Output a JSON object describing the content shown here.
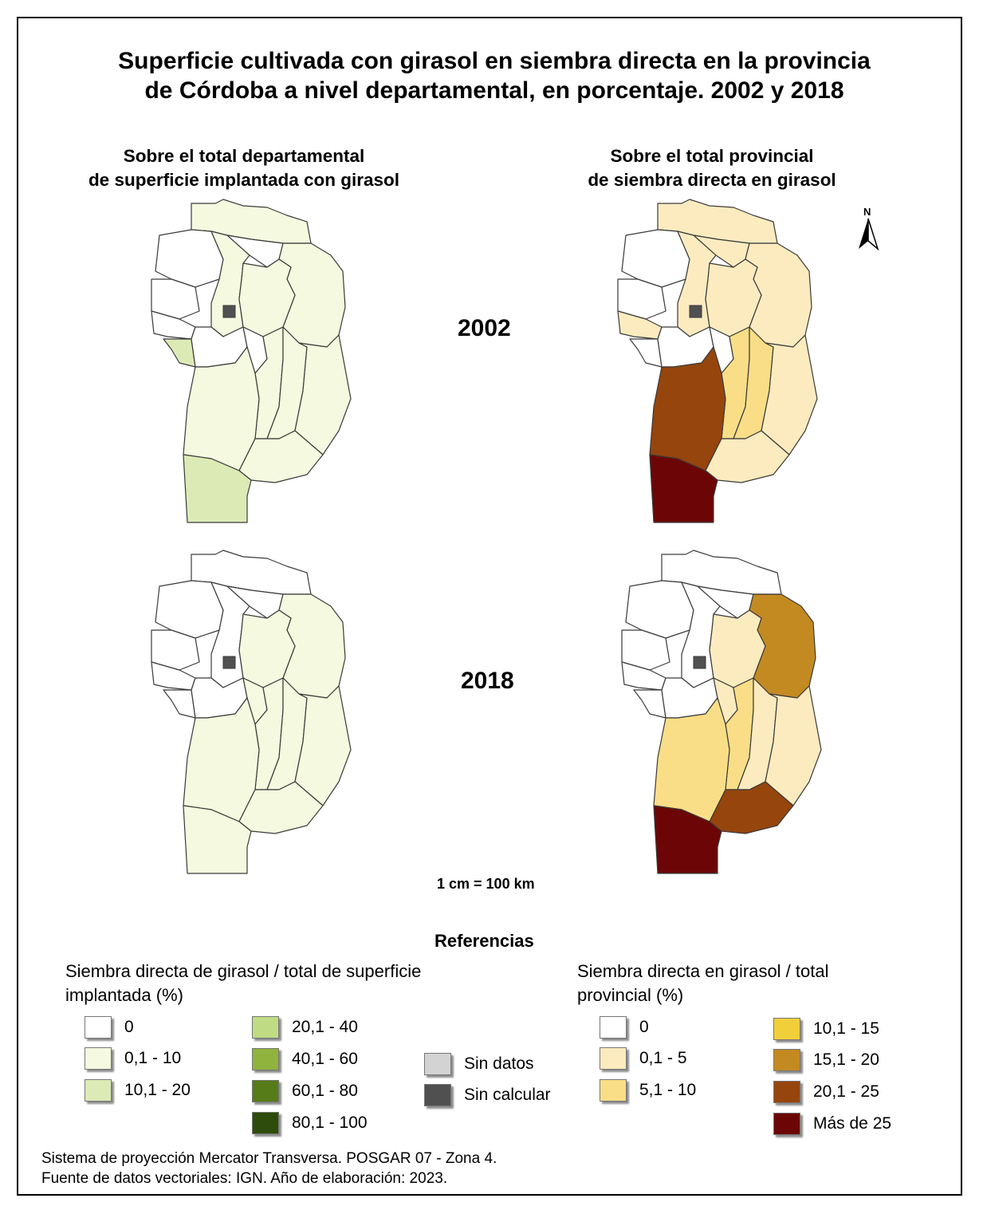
{
  "title": {
    "line1": "Superficie cultivada con girasol en siembra directa en la provincia",
    "line2": "de Córdoba a nivel departamental, en porcentaje. 2002 y 2018"
  },
  "columns": {
    "left": {
      "line1": "Sobre el total departamental",
      "line2": "de superficie implantada con girasol"
    },
    "right": {
      "line1": "Sobre el total provincial",
      "line2": "de siembra directa en girasol"
    }
  },
  "years": [
    "2002",
    "2018"
  ],
  "north_label": "N",
  "scale": "1 cm = 100 km",
  "references_title": "Referencias",
  "legend_left": {
    "title_line1": "Siembra directa de girasol / total de superficie",
    "title_line2": "implantada (%)",
    "items": [
      {
        "label": "0",
        "color": "#ffffff"
      },
      {
        "label": "0,1 - 10",
        "color": "#f4f9df"
      },
      {
        "label": "10,1 - 20",
        "color": "#dcebb6"
      },
      {
        "label": "20,1 - 40",
        "color": "#bfdc84"
      },
      {
        "label": "40,1 - 60",
        "color": "#8fb33c"
      },
      {
        "label": "60,1 - 80",
        "color": "#567c1a"
      },
      {
        "label": "80,1 - 100",
        "color": "#2e4c0b"
      }
    ]
  },
  "legend_mid": {
    "items": [
      {
        "label": "Sin datos",
        "color": "#d3d3d3"
      },
      {
        "label": "Sin calcular",
        "color": "#505050"
      }
    ]
  },
  "legend_right": {
    "title_line1": "Siembra directa en girasol / total",
    "title_line2": "provincial (%)",
    "items": [
      {
        "label": "0",
        "color": "#ffffff"
      },
      {
        "label": "0,1 - 5",
        "color": "#fcebbf"
      },
      {
        "label": "5,1 - 10",
        "color": "#f9de87"
      },
      {
        "label": "10,1 - 15",
        "color": "#f1cf3a"
      },
      {
        "label": "15,1 - 20",
        "color": "#c48a22"
      },
      {
        "label": "20,1 - 25",
        "color": "#96450d"
      },
      {
        "label": "Más de 25",
        "color": "#6c0606"
      }
    ]
  },
  "maps": {
    "2002_dep": {
      "capital": "Sin calcular",
      "classes": {
        "nw": "0",
        "center_w": "0",
        "capital_ring": "0,1 - 10",
        "ne": "0,1 - 10",
        "mid": "0,1 - 10",
        "sw_small": "10,1 - 20",
        "middle_strips": "0,1 - 10",
        "south": "0,1 - 10",
        "southmost": "10,1 - 20"
      }
    },
    "2002_prov": {
      "capital": "Sin calcular",
      "classes": {
        "nw": "0",
        "center_w": "0",
        "capital_ring": "0,1 - 5",
        "ne": "0,1 - 5",
        "mid": "0,1 - 5",
        "strip_center": "5,1 - 10",
        "strip_east": "5,1 - 10",
        "sw_big": "20,1 - 25",
        "south": "0,1 - 5",
        "southmost": "Más de 25"
      }
    },
    "2018_dep": {
      "capital": "Sin calcular",
      "classes": {
        "nw": "0",
        "center_w": "0",
        "ne": "0,1 - 10",
        "mid": "0,1 - 10",
        "south": "0,1 - 10",
        "southmost": "0,1 - 10"
      }
    },
    "2018_prov": {
      "capital": "Sin calcular",
      "classes": {
        "nw": "0",
        "center_w": "0",
        "ne": "15,1 - 20",
        "mid": "0,1 - 5",
        "strips": "0,1 - 5",
        "sw_big": "5,1 - 10",
        "center_s": "5,1 - 10",
        "south": "20,1 - 25",
        "southmost": "Más de 25"
      }
    }
  },
  "footer": {
    "line1": "Sistema de proyección Mercator Transversa. POSGAR 07 - Zona 4.",
    "line2": "Fuente de datos vectoriales: IGN. Año de elaboración: 2023."
  }
}
